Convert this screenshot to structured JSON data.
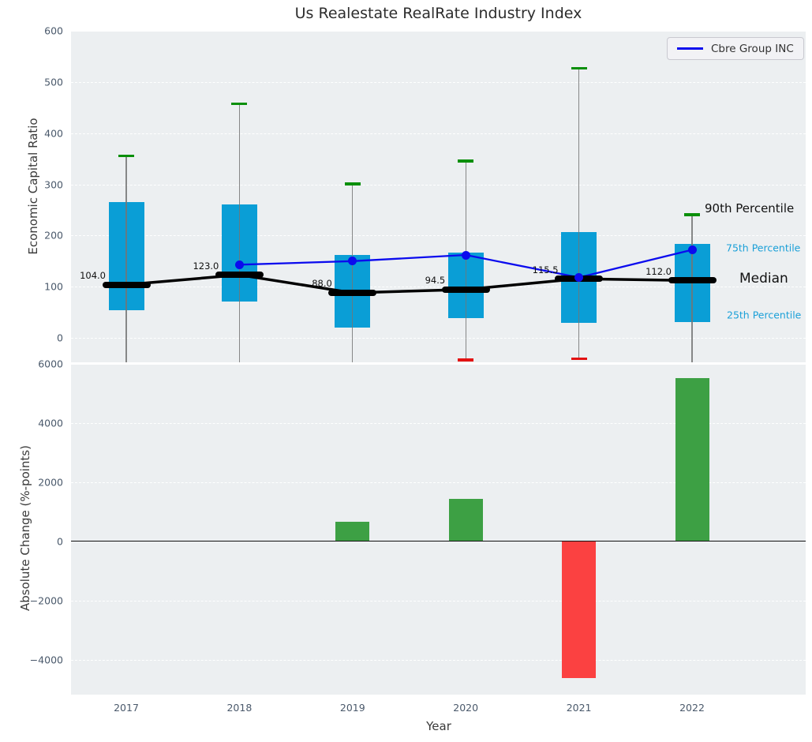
{
  "title": "Us Realestate RealRate Industry Index",
  "legend": {
    "label": "Cbre Group INC"
  },
  "annotations": {
    "p90": "90th Percentile",
    "p75": "75th Percentile",
    "median": "Median",
    "p25": "25th Percentile"
  },
  "colors": {
    "axes_bg": "#eceff1",
    "grid": "#ffffff",
    "box_blue": "#0a9ed6",
    "median_black": "#000000",
    "cbre_blue": "#0b0bee",
    "green_cap": "#0a8f0a",
    "red_cap": "#e31212",
    "bar_green": "#3da044",
    "bar_red": "#fb4141",
    "whisker_gray": "#747474",
    "tick_color": "#4a596b",
    "annotation_cyan": "#1ba0d8",
    "legend_bg": "#f2f2f5",
    "legend_border": "#c9c9d0"
  },
  "chart_data": [
    {
      "type": "boxplot",
      "title": "Us Realestate RealRate Industry Index",
      "ylabel": "Economic Capital Ratio",
      "ylim": [
        -48,
        600
      ],
      "ytick_labels": [
        "600",
        "500",
        "400",
        "300",
        "200",
        "100",
        "0"
      ],
      "ytick_values": [
        600,
        500,
        400,
        300,
        200,
        100,
        0
      ],
      "grid": "white-dashed",
      "legend_position": "upper right",
      "categories": [
        "2017",
        "2018",
        "2019",
        "2020",
        "2021",
        "2022"
      ],
      "boxes": [
        {
          "year": "2017",
          "p90": 356,
          "p75": 265,
          "median": 104.0,
          "p25": 54,
          "p10": null
        },
        {
          "year": "2018",
          "p90": 458,
          "p75": 261,
          "median": 123.0,
          "p25": 71,
          "p10": null
        },
        {
          "year": "2019",
          "p90": 301,
          "p75": 162,
          "median": 88.0,
          "p25": 20,
          "p10": null
        },
        {
          "year": "2020",
          "p90": 346,
          "p75": 166,
          "median": 94.5,
          "p25": 38,
          "p10": -43
        },
        {
          "year": "2021",
          "p90": 527,
          "p75": 207,
          "median": 115.5,
          "p25": 30,
          "p10": -41
        },
        {
          "year": "2022",
          "p90": 241,
          "p75": 184,
          "median": 112.0,
          "p25": 31,
          "p10": null
        }
      ],
      "median_labels": [
        "104.0",
        "123.0",
        "88.0",
        "94.5",
        "115.5",
        "112.0"
      ],
      "series": [
        {
          "name": "Cbre Group INC",
          "values": [
            null,
            143,
            150,
            162,
            118,
            172
          ]
        }
      ]
    },
    {
      "type": "bar",
      "xlabel": "Year",
      "ylabel": "Absolute Change (%-points)",
      "ylim": [
        -4700,
        6000
      ],
      "ytick_labels": [
        "6000",
        "4000",
        "2000",
        "0",
        "−2000",
        "−4000"
      ],
      "ytick_values": [
        6000,
        4000,
        2000,
        0,
        -2000,
        -4000
      ],
      "grid": "white-dashed",
      "categories": [
        "2017",
        "2018",
        "2019",
        "2020",
        "2021",
        "2022"
      ],
      "values": [
        0,
        0,
        680,
        1430,
        -4610,
        5530
      ],
      "bar_colors": [
        "none",
        "none",
        "green",
        "green",
        "red",
        "green"
      ]
    }
  ]
}
